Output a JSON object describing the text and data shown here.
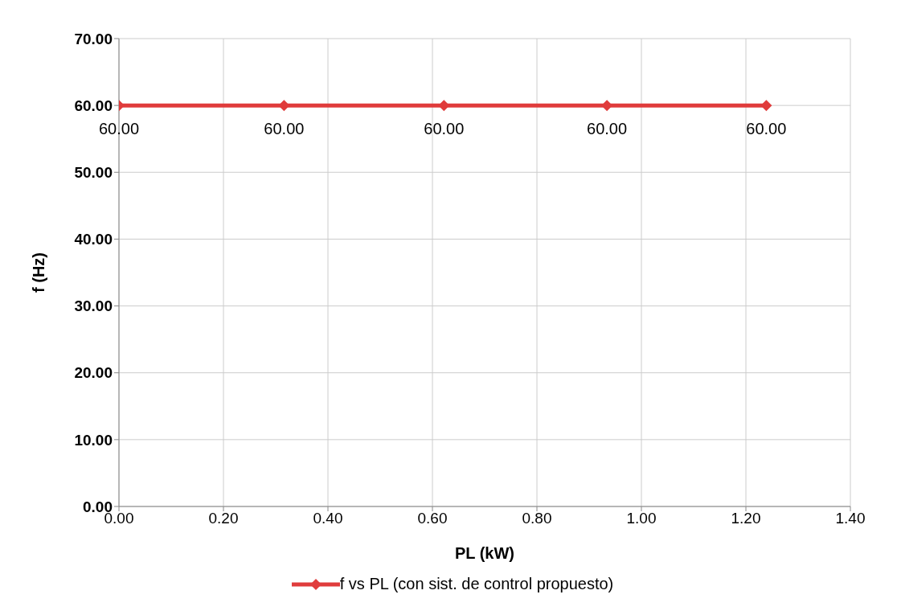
{
  "chart_data": {
    "type": "line",
    "xlabel": "PL (kW)",
    "ylabel": "f  (Hz)",
    "x": [
      0,
      0.316,
      0.622,
      0.934,
      1.239
    ],
    "series": [
      {
        "name": "f vs PL (con sist. de control propuesto)",
        "color": "#e03c3c",
        "values": [
          60,
          60,
          60,
          60,
          60
        ],
        "value_labels": [
          "60.00",
          "60.00",
          "60.00",
          "60.00",
          "60.00"
        ]
      }
    ],
    "xlim": [
      0,
      1.4
    ],
    "xticks": [
      {
        "value": 0,
        "label": "0.00"
      },
      {
        "value": 0.2,
        "label": "0.20"
      },
      {
        "value": 0.4,
        "label": "0.40"
      },
      {
        "value": 0.6,
        "label": "0.60"
      },
      {
        "value": 0.8,
        "label": "0.80"
      },
      {
        "value": 1.0,
        "label": "1.00"
      },
      {
        "value": 1.2,
        "label": "1.20"
      },
      {
        "value": 1.4,
        "label": "1.40"
      }
    ],
    "ylim": [
      0,
      70
    ],
    "yticks": [
      {
        "value": 0,
        "label": "0.00"
      },
      {
        "value": 10,
        "label": "10.00"
      },
      {
        "value": 20,
        "label": "20.00"
      },
      {
        "value": 30,
        "label": "30.00"
      },
      {
        "value": 40,
        "label": "40.00"
      },
      {
        "value": 50,
        "label": "50.00"
      },
      {
        "value": 60,
        "label": "60.00"
      },
      {
        "value": 70,
        "label": "70.00"
      }
    ],
    "grid": true,
    "legend": "bottom",
    "marker": "diamond",
    "line_style": "solid"
  }
}
